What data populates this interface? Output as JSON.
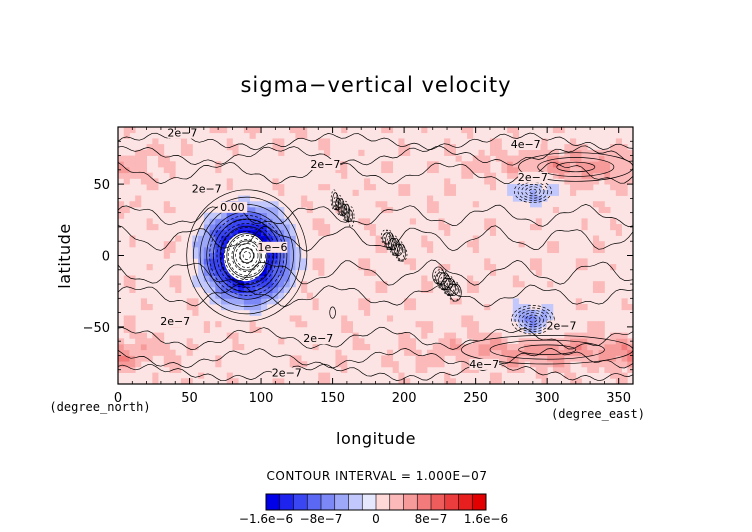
{
  "chart_data": {
    "type": "contour",
    "title": "sigma−vertical velocity",
    "xlabel": "longitude",
    "ylabel": "latitude",
    "x_unit": "(degree_east)",
    "y_unit": "(degree_north)",
    "xlim": [
      0,
      360
    ],
    "ylim": [
      -90,
      90
    ],
    "x_ticks": [
      0,
      50,
      100,
      150,
      200,
      250,
      300,
      350
    ],
    "y_ticks": [
      -50,
      0,
      50
    ],
    "x_tick_labels": [
      "0",
      "50",
      "100",
      "150",
      "200",
      "250",
      "300",
      "350"
    ],
    "y_tick_labels": [
      "−50",
      "0",
      "50"
    ],
    "contour_interval_text": "CONTOUR INTERVAL = 1.000E−07",
    "contour_interval": 1e-07,
    "colorbar": {
      "levels": [
        -1.6e-06,
        -1.4e-06,
        -1.2e-06,
        -1e-06,
        -8e-07,
        -6e-07,
        -4e-07,
        -2e-07,
        0,
        2e-07,
        4e-07,
        6e-07,
        8e-07,
        1e-06,
        1.2e-06,
        1.4e-06,
        1.6e-06
      ],
      "colors": [
        "#0000e8",
        "#1e24ee",
        "#3a46f2",
        "#5b68f4",
        "#7c88f6",
        "#9ea8f8",
        "#c2c8fb",
        "#e6e8fd",
        "#ffd8d8",
        "#fbb9b9",
        "#f79a9a",
        "#f37b7b",
        "#ef5c5c",
        "#eb3d3d",
        "#e71f1f",
        "#e30000"
      ],
      "tick_labels": [
        "−1.6e−6",
        "−8e−7",
        "0",
        "8e−7",
        "1.6e−6"
      ],
      "tick_values": [
        -1.6e-06,
        -8e-07,
        0,
        8e-07,
        1.6e-06
      ]
    },
    "features": [
      {
        "kind": "strong_negative_vortex",
        "lon": 90,
        "lat": 0,
        "min_value": "< -1.6e-6",
        "note": "white (missing/undefined) core"
      },
      {
        "kind": "negative_cell",
        "lon": 290,
        "lat": 45,
        "value": -4e-07
      },
      {
        "kind": "negative_cell",
        "lon": 290,
        "lat": -45,
        "value": -6e-07
      },
      {
        "kind": "positive_band",
        "lat": 60,
        "lon_range": [
          250,
          360
        ],
        "value": 4e-07
      },
      {
        "kind": "positive_band",
        "lat": -65,
        "lon_range": [
          230,
          360
        ],
        "value": 4e-07
      }
    ],
    "contour_labels": [
      {
        "text": "2e−7",
        "lon": 45,
        "lat": 84
      },
      {
        "text": "2e−7",
        "lon": 145,
        "lat": 62
      },
      {
        "text": "2e−7",
        "lon": 62,
        "lat": 45
      },
      {
        "text": "0.00",
        "lon": 80,
        "lat": 32
      },
      {
        "text": "1e−6",
        "lon": 108,
        "lat": 4
      },
      {
        "text": "2e−7",
        "lon": 40,
        "lat": -48
      },
      {
        "text": "2e−7",
        "lon": 140,
        "lat": -60
      },
      {
        "text": "2e−7",
        "lon": 118,
        "lat": -84
      },
      {
        "text": "4e−7",
        "lon": 285,
        "lat": 76
      },
      {
        "text": "2e−7",
        "lon": 290,
        "lat": 53
      },
      {
        "text": "2e−7",
        "lon": 310,
        "lat": -51
      },
      {
        "text": "4e−7",
        "lon": 256,
        "lat": -78
      }
    ]
  }
}
